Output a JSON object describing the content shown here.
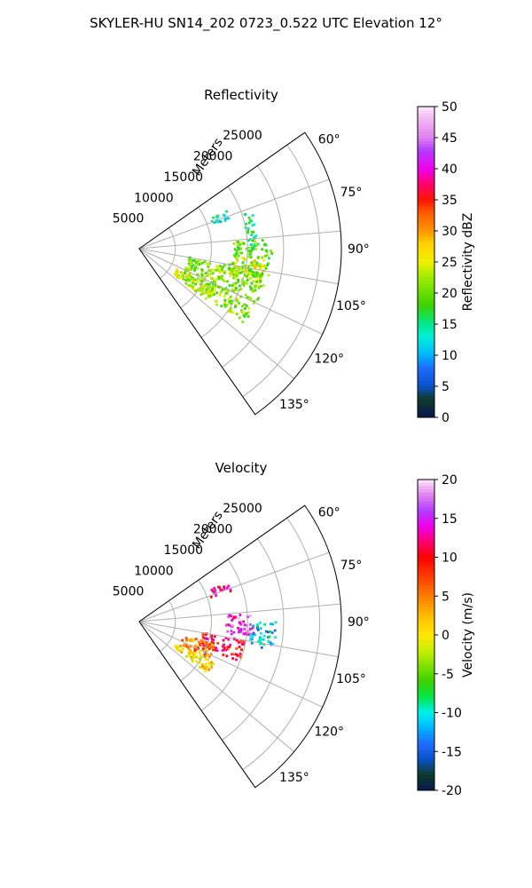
{
  "figure": {
    "title": "SKYLER-HU  SN14_202  0723_0.522 UTC Elevation 12°"
  },
  "chart_data": [
    {
      "type": "heatmap",
      "projection": "polar-sector",
      "title": "Reflectivity",
      "range_label": "Meters",
      "range_ticks": [
        5000,
        10000,
        15000,
        20000,
        25000
      ],
      "range_max": 28000,
      "azimuth_range_deg": [
        55,
        145
      ],
      "azimuth_ticks": [
        "60°",
        "75°",
        "90°",
        "105°",
        "120°",
        "135°"
      ],
      "azimuth_tick_values": [
        60,
        75,
        90,
        105,
        120,
        135
      ],
      "grid": true,
      "colorbar": {
        "label": "Reflectivity dBZ",
        "min": 0,
        "max": 50,
        "ticks": [
          0,
          5,
          10,
          15,
          20,
          25,
          30,
          35,
          40,
          45,
          50
        ],
        "stops": [
          {
            "v": 0,
            "c": "#0a1650"
          },
          {
            "v": 3,
            "c": "#0d3b2a"
          },
          {
            "v": 5,
            "c": "#0a50c8"
          },
          {
            "v": 8,
            "c": "#1e6cff"
          },
          {
            "v": 10,
            "c": "#00b4ff"
          },
          {
            "v": 13,
            "c": "#00f0d8"
          },
          {
            "v": 15,
            "c": "#00e890"
          },
          {
            "v": 18,
            "c": "#3cd200"
          },
          {
            "v": 20,
            "c": "#66dd00"
          },
          {
            "v": 23,
            "c": "#aaee00"
          },
          {
            "v": 25,
            "c": "#f0f000"
          },
          {
            "v": 28,
            "c": "#ffd200"
          },
          {
            "v": 30,
            "c": "#ff9600"
          },
          {
            "v": 33,
            "c": "#ff5a00"
          },
          {
            "v": 35,
            "c": "#ff1400"
          },
          {
            "v": 38,
            "c": "#ff0080"
          },
          {
            "v": 40,
            "c": "#ee00ee"
          },
          {
            "v": 43,
            "c": "#b23cff"
          },
          {
            "v": 45,
            "c": "#e080f0"
          },
          {
            "v": 48,
            "c": "#f2b8f2"
          },
          {
            "v": 50,
            "c": "#fde6fa"
          }
        ]
      },
      "echo_regions": [
        {
          "az": [
            66,
            72
          ],
          "r": [
            10500,
            13500
          ],
          "value": 14
        },
        {
          "az": [
            72,
            92
          ],
          "r": [
            15000,
            16500
          ],
          "value": 15
        },
        {
          "az": [
            86,
            103
          ],
          "r": [
            13000,
            18500
          ],
          "value": 20
        },
        {
          "az": [
            95,
            106
          ],
          "r": [
            13000,
            17500
          ],
          "value": 25
        },
        {
          "az": [
            100,
            126
          ],
          "r": [
            7000,
            18000
          ],
          "value": 21
        },
        {
          "az": [
            118,
            127
          ],
          "r": [
            6000,
            12000
          ],
          "value": 24
        }
      ]
    },
    {
      "type": "heatmap",
      "projection": "polar-sector",
      "title": "Velocity",
      "range_label": "Meters",
      "range_ticks": [
        5000,
        10000,
        15000,
        20000,
        25000
      ],
      "range_max": 28000,
      "azimuth_range_deg": [
        55,
        145
      ],
      "azimuth_ticks": [
        "60°",
        "75°",
        "90°",
        "105°",
        "120°",
        "135°"
      ],
      "azimuth_tick_values": [
        60,
        75,
        90,
        105,
        120,
        135
      ],
      "grid": true,
      "colorbar": {
        "label": "Velocity (m/s)",
        "min": -20,
        "max": 20,
        "ticks": [
          -20,
          -15,
          -10,
          -5,
          0,
          5,
          10,
          15,
          20
        ],
        "stops": [
          {
            "v": -20,
            "c": "#0a1650"
          },
          {
            "v": -18,
            "c": "#0d3b2a"
          },
          {
            "v": -16,
            "c": "#0a50c8"
          },
          {
            "v": -14,
            "c": "#1e6cff"
          },
          {
            "v": -12,
            "c": "#00b4ff"
          },
          {
            "v": -10,
            "c": "#00f0f0"
          },
          {
            "v": -8,
            "c": "#00e84a"
          },
          {
            "v": -6,
            "c": "#3cd200"
          },
          {
            "v": -4,
            "c": "#7ce000"
          },
          {
            "v": -2,
            "c": "#c8f000"
          },
          {
            "v": 0,
            "c": "#ffe600"
          },
          {
            "v": 2,
            "c": "#ffc800"
          },
          {
            "v": 4,
            "c": "#ff9600"
          },
          {
            "v": 6,
            "c": "#ff6400"
          },
          {
            "v": 8,
            "c": "#ff3200"
          },
          {
            "v": 10,
            "c": "#ff0000"
          },
          {
            "v": 12,
            "c": "#ff0070"
          },
          {
            "v": 14,
            "c": "#ee00ee"
          },
          {
            "v": 16,
            "c": "#b23cff"
          },
          {
            "v": 18,
            "c": "#e080f0"
          },
          {
            "v": 20,
            "c": "#fde6fa"
          }
        ]
      },
      "echo_regions": [
        {
          "az": [
            66,
            72
          ],
          "r": [
            10500,
            13500
          ],
          "value": 13
        },
        {
          "az": [
            86,
            98
          ],
          "r": [
            12000,
            16000
          ],
          "value": 15
        },
        {
          "az": [
            90,
            102
          ],
          "r": [
            15500,
            19000
          ],
          "value": -11
        },
        {
          "az": [
            100,
            112
          ],
          "r": [
            9000,
            15000
          ],
          "value": 10
        },
        {
          "az": [
            106,
            118
          ],
          "r": [
            6500,
            11000
          ],
          "value": 5
        },
        {
          "az": [
            118,
            127
          ],
          "r": [
            6000,
            12000
          ],
          "value": 1
        }
      ]
    }
  ]
}
